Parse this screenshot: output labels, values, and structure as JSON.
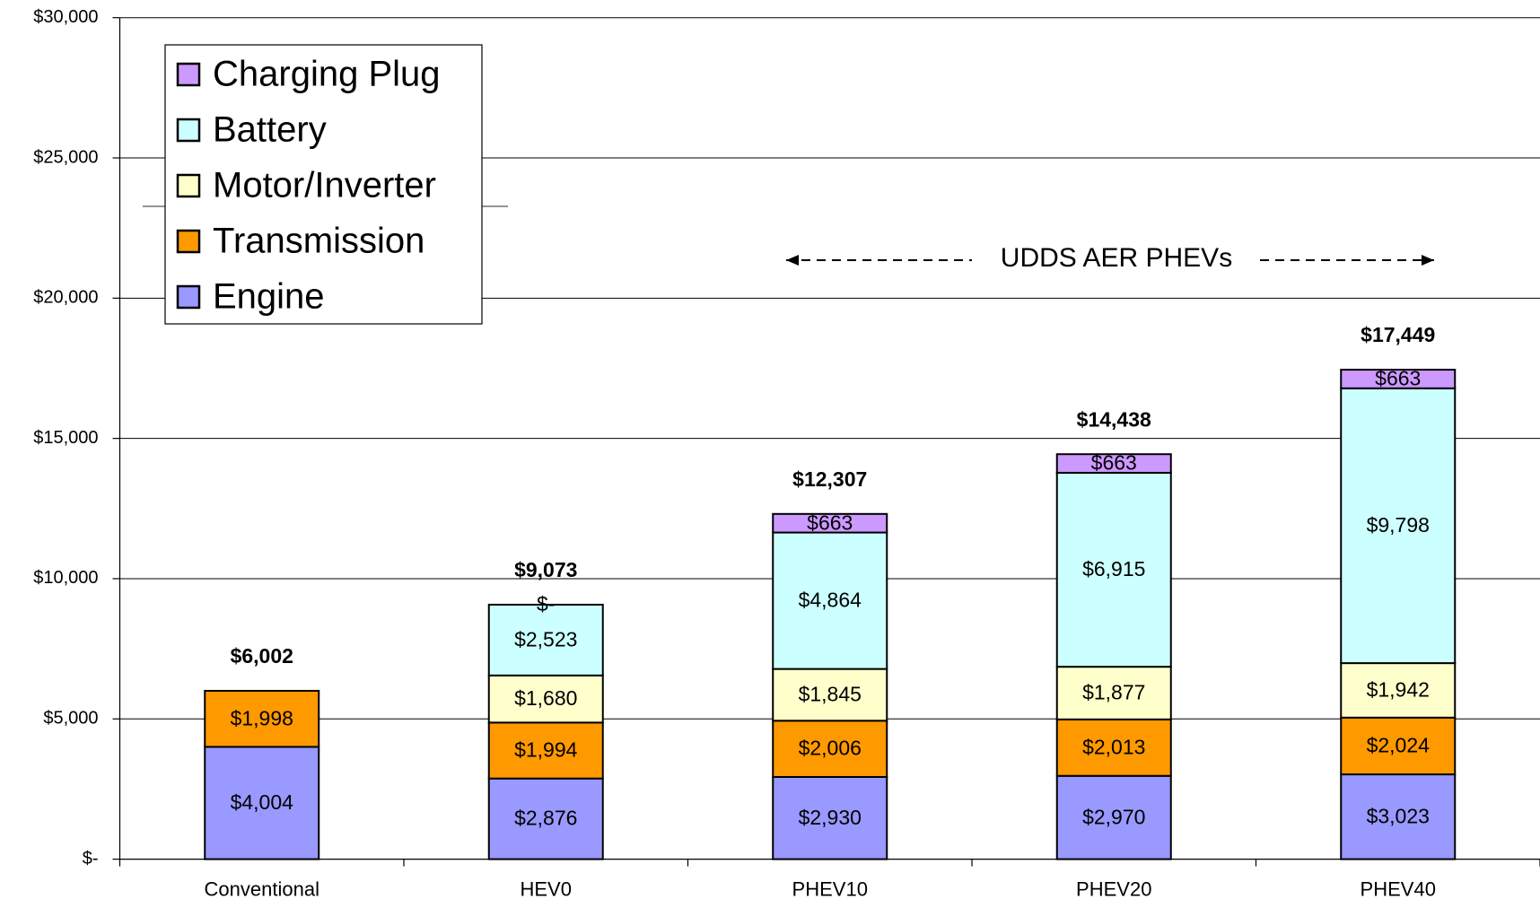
{
  "chart_data": {
    "type": "stacked_bar",
    "categories": [
      "Conventional",
      "HEV0",
      "PHEV10",
      "PHEV20",
      "PHEV40"
    ],
    "series": [
      {
        "name": "Engine",
        "color": "#9999ff",
        "values": [
          4004,
          2876,
          2930,
          2970,
          3023
        ],
        "value_labels": [
          "$4,004",
          "$2,876",
          "$2,930",
          "$2,970",
          "$3,023"
        ]
      },
      {
        "name": "Transmission",
        "color": "#ff9900",
        "values": [
          1998,
          1994,
          2006,
          2013,
          2024
        ],
        "value_labels": [
          "$1,998",
          "$1,994",
          "$2,006",
          "$2,013",
          "$2,024"
        ]
      },
      {
        "name": "Motor/Inverter",
        "color": "#ffffcc",
        "values": [
          null,
          1680,
          1845,
          1877,
          1942
        ],
        "value_labels": [
          null,
          "$1,680",
          "$1,845",
          "$1,877",
          "$1,942"
        ]
      },
      {
        "name": "Battery",
        "color": "#ccffff",
        "values": [
          null,
          2523,
          4864,
          6915,
          9798
        ],
        "value_labels": [
          null,
          "$2,523",
          "$4,864",
          "$6,915",
          "$9,798"
        ]
      },
      {
        "name": "Charging Plug",
        "color": "#cc99ff",
        "values": [
          null,
          0,
          663,
          663,
          663
        ],
        "value_labels": [
          null,
          "$-",
          "$663",
          "$663",
          "$663"
        ]
      }
    ],
    "totals": [
      6002,
      9073,
      12307,
      14438,
      17449
    ],
    "total_labels": [
      "$6,002",
      "$9,073",
      "$12,307",
      "$14,438",
      "$17,449"
    ],
    "annotation": "UDDS AER PHEVs",
    "ylim": [
      0,
      30000
    ],
    "yticks": [
      {
        "value": 0,
        "label": "$-"
      },
      {
        "value": 5000,
        "label": "$5,000"
      },
      {
        "value": 10000,
        "label": "$10,000"
      },
      {
        "value": 15000,
        "label": "$15,000"
      },
      {
        "value": 20000,
        "label": "$20,000"
      },
      {
        "value": 25000,
        "label": "$25,000"
      },
      {
        "value": 30000,
        "label": "$30,000"
      }
    ],
    "grid": true,
    "legend": "upper left"
  }
}
